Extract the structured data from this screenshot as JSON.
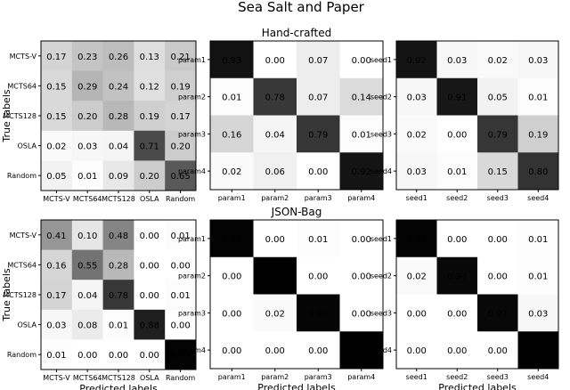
{
  "figure": {
    "title": "Sea Salt and Paper",
    "row_titles": [
      "Hand-crafted",
      "JSON-Bag"
    ],
    "colormap": {
      "low": "#ffffff",
      "high": "#000000"
    },
    "text_colors": {
      "dark_cell_text": "#ffffff",
      "light_cell_text": "#000000"
    }
  },
  "chart_data": [
    {
      "type": "heatmap",
      "title": "",
      "xlabel": "",
      "ylabel": "True labels",
      "x_categories": [
        "MCTS-V",
        "MCTS64",
        "MCTS128",
        "OSLA",
        "Random"
      ],
      "y_categories": [
        "MCTS-V",
        "MCTS64",
        "MCTS128",
        "OSLA",
        "Random"
      ],
      "values": [
        [
          0.17,
          0.23,
          0.26,
          0.13,
          0.21
        ],
        [
          0.15,
          0.29,
          0.24,
          0.12,
          0.19
        ],
        [
          0.15,
          0.2,
          0.28,
          0.19,
          0.17
        ],
        [
          0.02,
          0.03,
          0.04,
          0.71,
          0.2
        ],
        [
          0.05,
          0.01,
          0.09,
          0.2,
          0.65
        ]
      ]
    },
    {
      "type": "heatmap",
      "title": "Hand-crafted",
      "xlabel": "",
      "ylabel": "",
      "x_categories": [
        "param1",
        "param2",
        "param3",
        "param4"
      ],
      "y_categories": [
        "param1",
        "param2",
        "param3",
        "param4"
      ],
      "values": [
        [
          0.93,
          0.0,
          0.07,
          0.0
        ],
        [
          0.01,
          0.78,
          0.07,
          0.14
        ],
        [
          0.16,
          0.04,
          0.79,
          0.01
        ],
        [
          0.02,
          0.06,
          0.0,
          0.92
        ]
      ]
    },
    {
      "type": "heatmap",
      "title": "",
      "xlabel": "",
      "ylabel": "",
      "x_categories": [
        "seed1",
        "seed2",
        "seed3",
        "seed4"
      ],
      "y_categories": [
        "seed1",
        "seed2",
        "seed3",
        "seed4"
      ],
      "values": [
        [
          0.92,
          0.03,
          0.02,
          0.03
        ],
        [
          0.03,
          0.91,
          0.05,
          0.01
        ],
        [
          0.02,
          0.0,
          0.79,
          0.19
        ],
        [
          0.03,
          0.01,
          0.15,
          0.8
        ]
      ]
    },
    {
      "type": "heatmap",
      "title": "",
      "xlabel": "Predicted labels",
      "ylabel": "True labels",
      "x_categories": [
        "MCTS-V",
        "MCTS64",
        "MCTS128",
        "OSLA",
        "Random"
      ],
      "y_categories": [
        "MCTS-V",
        "MCTS64",
        "MCTS128",
        "OSLA",
        "Random"
      ],
      "values": [
        [
          0.41,
          0.1,
          0.48,
          0.0,
          0.01
        ],
        [
          0.16,
          0.55,
          0.28,
          0.0,
          0.0
        ],
        [
          0.17,
          0.04,
          0.78,
          0.0,
          0.01
        ],
        [
          0.03,
          0.08,
          0.01,
          0.88,
          0.0
        ],
        [
          0.01,
          0.0,
          0.0,
          0.0,
          0.99
        ]
      ]
    },
    {
      "type": "heatmap",
      "title": "JSON-Bag",
      "xlabel": "Predicted labels",
      "ylabel": "",
      "x_categories": [
        "param1",
        "param2",
        "param3",
        "param4"
      ],
      "y_categories": [
        "param1",
        "param2",
        "param3",
        "param4"
      ],
      "values": [
        [
          0.99,
          0.0,
          0.01,
          0.0
        ],
        [
          0.0,
          1.0,
          0.0,
          0.0
        ],
        [
          0.0,
          0.02,
          0.98,
          0.0
        ],
        [
          0.0,
          0.0,
          0.0,
          1.0
        ]
      ]
    },
    {
      "type": "heatmap",
      "title": "",
      "xlabel": "Predicted labels",
      "ylabel": "",
      "x_categories": [
        "seed1",
        "seed2",
        "seed3",
        "seed4"
      ],
      "y_categories": [
        "seed1",
        "seed2",
        "seed3",
        "seed4"
      ],
      "values": [
        [
          0.99,
          0.0,
          0.0,
          0.01
        ],
        [
          0.02,
          0.97,
          0.0,
          0.01
        ],
        [
          0.0,
          0.0,
          0.97,
          0.03
        ],
        [
          0.0,
          0.0,
          0.0,
          1.0
        ]
      ]
    }
  ]
}
